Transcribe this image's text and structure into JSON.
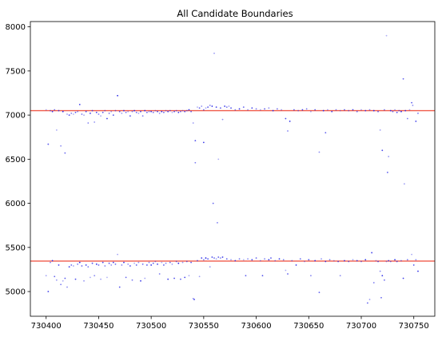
{
  "chart_data": {
    "type": "scatter",
    "title": "All Candidate Boundaries",
    "xlabel": "",
    "ylabel": "",
    "xlim": [
      730385,
      770
    ],
    "ylim": [
      4720,
      8060
    ],
    "x_ticks": [
      "730400",
      "730450",
      "730500",
      "730550",
      "730600",
      "730650",
      "730700",
      "730750"
    ],
    "y_ticks": [
      "5000",
      "5500",
      "6000",
      "6500",
      "7000",
      "7500",
      "8000"
    ],
    "grid": false,
    "legend": "none",
    "hlines": [
      {
        "y": 7050,
        "color": "#f05a4a"
      },
      {
        "y": 5345,
        "color": "#f05a4a"
      }
    ],
    "point_color": "#1f1fe6",
    "series": [
      {
        "points": [
          [
            730400,
            7060
          ],
          [
            730402,
            6670
          ],
          [
            730404,
            7050
          ],
          [
            730406,
            7040
          ],
          [
            730408,
            7060
          ],
          [
            730410,
            6830
          ],
          [
            730412,
            7050
          ],
          [
            730414,
            6650
          ],
          [
            730416,
            7040
          ],
          [
            730418,
            6570
          ],
          [
            730420,
            7010
          ],
          [
            730422,
            7000
          ],
          [
            730424,
            7020
          ],
          [
            730426,
            7010
          ],
          [
            730428,
            7030
          ],
          [
            730430,
            7040
          ],
          [
            730432,
            7120
          ],
          [
            730434,
            7010
          ],
          [
            730436,
            7000
          ],
          [
            730438,
            7040
          ],
          [
            730440,
            6910
          ],
          [
            730442,
            7020
          ],
          [
            730444,
            7050
          ],
          [
            730446,
            6920
          ],
          [
            730448,
            7030
          ],
          [
            730450,
            7010
          ],
          [
            730452,
            6990
          ],
          [
            730454,
            7030
          ],
          [
            730456,
            7050
          ],
          [
            730458,
            6960
          ],
          [
            730460,
            7020
          ],
          [
            730462,
            7040
          ],
          [
            730464,
            7000
          ],
          [
            730466,
            7050
          ],
          [
            730468,
            7220
          ],
          [
            730470,
            7040
          ],
          [
            730472,
            7020
          ],
          [
            730474,
            7050
          ],
          [
            730476,
            7030
          ],
          [
            730478,
            7040
          ],
          [
            730480,
            6990
          ],
          [
            730482,
            7040
          ],
          [
            730484,
            7050
          ],
          [
            730486,
            7030
          ],
          [
            730488,
            7020
          ],
          [
            730490,
            7040
          ],
          [
            730492,
            6990
          ],
          [
            730494,
            7050
          ],
          [
            730496,
            7030
          ],
          [
            730498,
            7040
          ],
          [
            730500,
            7040
          ],
          [
            730502,
            7030
          ],
          [
            730504,
            7050
          ],
          [
            730506,
            7040
          ],
          [
            730508,
            7020
          ],
          [
            730510,
            7040
          ],
          [
            730512,
            7030
          ],
          [
            730514,
            7050
          ],
          [
            730516,
            7040
          ],
          [
            730518,
            7050
          ],
          [
            730520,
            7030
          ],
          [
            730522,
            7040
          ],
          [
            730524,
            7050
          ],
          [
            730526,
            7030
          ],
          [
            730528,
            7040
          ],
          [
            730530,
            7050
          ],
          [
            730532,
            7040
          ],
          [
            730534,
            7050
          ],
          [
            730536,
            7060
          ],
          [
            730538,
            7040
          ],
          [
            730540,
            6910
          ],
          [
            730542,
            6710
          ],
          [
            730542,
            6460
          ],
          [
            730544,
            7090
          ],
          [
            730546,
            7080
          ],
          [
            730548,
            7100
          ],
          [
            730550,
            6690
          ],
          [
            730550,
            7060
          ],
          [
            730552,
            7080
          ],
          [
            730554,
            7090
          ],
          [
            730556,
            7110
          ],
          [
            730558,
            7100
          ],
          [
            730559,
            6000
          ],
          [
            730560,
            7700
          ],
          [
            730562,
            7090
          ],
          [
            730563,
            5780
          ],
          [
            730564,
            6500
          ],
          [
            730566,
            7080
          ],
          [
            730568,
            6950
          ],
          [
            730570,
            7100
          ],
          [
            730572,
            7090
          ],
          [
            730574,
            7100
          ],
          [
            730576,
            7080
          ],
          [
            730580,
            7060
          ],
          [
            730584,
            7070
          ],
          [
            730588,
            7090
          ],
          [
            730592,
            7060
          ],
          [
            730596,
            7080
          ],
          [
            730600,
            7070
          ],
          [
            730604,
            7060
          ],
          [
            730608,
            7070
          ],
          [
            730612,
            7080
          ],
          [
            730616,
            7050
          ],
          [
            730620,
            7070
          ],
          [
            730624,
            7060
          ],
          [
            730628,
            6960
          ],
          [
            730630,
            6820
          ],
          [
            730632,
            6930
          ],
          [
            730636,
            7060
          ],
          [
            730640,
            7050
          ],
          [
            730644,
            7060
          ],
          [
            730648,
            7070
          ],
          [
            730652,
            7040
          ],
          [
            730656,
            7060
          ],
          [
            730660,
            6580
          ],
          [
            730664,
            7050
          ],
          [
            730666,
            6800
          ],
          [
            730668,
            7060
          ],
          [
            730672,
            7040
          ],
          [
            730676,
            7060
          ],
          [
            730680,
            7050
          ],
          [
            730684,
            7060
          ],
          [
            730688,
            7050
          ],
          [
            730692,
            7060
          ],
          [
            730696,
            7040
          ],
          [
            730700,
            7060
          ],
          [
            730704,
            7050
          ],
          [
            730708,
            7060
          ],
          [
            730712,
            7050
          ],
          [
            730716,
            7040
          ],
          [
            730718,
            6830
          ],
          [
            730720,
            6600
          ],
          [
            730722,
            7060
          ],
          [
            730724,
            7900
          ],
          [
            730725,
            6350
          ],
          [
            730726,
            6530
          ],
          [
            730728,
            7050
          ],
          [
            730730,
            7040
          ],
          [
            730732,
            7060
          ],
          [
            730734,
            7030
          ],
          [
            730736,
            7050
          ],
          [
            730738,
            7040
          ],
          [
            730740,
            7410
          ],
          [
            730741,
            6220
          ],
          [
            730742,
            7050
          ],
          [
            730744,
            6960
          ],
          [
            730746,
            7060
          ],
          [
            730748,
            7140
          ],
          [
            730749,
            7110
          ],
          [
            730752,
            6930
          ],
          [
            730754,
            7020
          ],
          [
            730400,
            5180
          ],
          [
            730402,
            5000
          ],
          [
            730404,
            5330
          ],
          [
            730406,
            5350
          ],
          [
            730408,
            5170
          ],
          [
            730410,
            5130
          ],
          [
            730412,
            5300
          ],
          [
            730414,
            5080
          ],
          [
            730416,
            5120
          ],
          [
            730418,
            5150
          ],
          [
            730420,
            5050
          ],
          [
            730422,
            5280
          ],
          [
            730424,
            5300
          ],
          [
            730426,
            5290
          ],
          [
            730428,
            5140
          ],
          [
            730430,
            5310
          ],
          [
            730432,
            5330
          ],
          [
            730434,
            5290
          ],
          [
            730436,
            5120
          ],
          [
            730438,
            5300
          ],
          [
            730440,
            5280
          ],
          [
            730442,
            5160
          ],
          [
            730444,
            5320
          ],
          [
            730446,
            5180
          ],
          [
            730448,
            5310
          ],
          [
            730450,
            5300
          ],
          [
            730452,
            5140
          ],
          [
            730454,
            5330
          ],
          [
            730456,
            5290
          ],
          [
            730458,
            5160
          ],
          [
            730460,
            5320
          ],
          [
            730462,
            5300
          ],
          [
            730464,
            5330
          ],
          [
            730466,
            5310
          ],
          [
            730468,
            5420
          ],
          [
            730470,
            5050
          ],
          [
            730472,
            5300
          ],
          [
            730474,
            5330
          ],
          [
            730476,
            5160
          ],
          [
            730478,
            5310
          ],
          [
            730480,
            5290
          ],
          [
            730482,
            5130
          ],
          [
            730484,
            5320
          ],
          [
            730486,
            5300
          ],
          [
            730488,
            5330
          ],
          [
            730490,
            5120
          ],
          [
            730492,
            5310
          ],
          [
            730494,
            5150
          ],
          [
            730496,
            5300
          ],
          [
            730498,
            5330
          ],
          [
            730500,
            5300
          ],
          [
            730502,
            5320
          ],
          [
            730504,
            5340
          ],
          [
            730506,
            5310
          ],
          [
            730508,
            5200
          ],
          [
            730510,
            5330
          ],
          [
            730512,
            5300
          ],
          [
            730514,
            5320
          ],
          [
            730516,
            5140
          ],
          [
            730518,
            5330
          ],
          [
            730520,
            5310
          ],
          [
            730522,
            5150
          ],
          [
            730524,
            5340
          ],
          [
            730526,
            5320
          ],
          [
            730528,
            5140
          ],
          [
            730530,
            5330
          ],
          [
            730532,
            5160
          ],
          [
            730534,
            5340
          ],
          [
            730536,
            5180
          ],
          [
            730538,
            5330
          ],
          [
            730540,
            4920
          ],
          [
            730541,
            4910
          ],
          [
            730544,
            5350
          ],
          [
            730546,
            5170
          ],
          [
            730548,
            5380
          ],
          [
            730550,
            5360
          ],
          [
            730552,
            5380
          ],
          [
            730554,
            5370
          ],
          [
            730556,
            5280
          ],
          [
            730558,
            5390
          ],
          [
            730560,
            5380
          ],
          [
            730562,
            5370
          ],
          [
            730564,
            5390
          ],
          [
            730566,
            5380
          ],
          [
            730568,
            5390
          ],
          [
            730572,
            5370
          ],
          [
            730576,
            5360
          ],
          [
            730580,
            5350
          ],
          [
            730584,
            5370
          ],
          [
            730588,
            5360
          ],
          [
            730590,
            5180
          ],
          [
            730592,
            5370
          ],
          [
            730596,
            5360
          ],
          [
            730600,
            5380
          ],
          [
            730604,
            5350
          ],
          [
            730606,
            5180
          ],
          [
            730608,
            5370
          ],
          [
            730612,
            5360
          ],
          [
            730614,
            5380
          ],
          [
            730618,
            5350
          ],
          [
            730622,
            5370
          ],
          [
            730626,
            5360
          ],
          [
            730628,
            5240
          ],
          [
            730630,
            5200
          ],
          [
            730634,
            5350
          ],
          [
            730638,
            5300
          ],
          [
            730642,
            5370
          ],
          [
            730646,
            5340
          ],
          [
            730650,
            5360
          ],
          [
            730652,
            5180
          ],
          [
            730656,
            5350
          ],
          [
            730660,
            4990
          ],
          [
            730662,
            5370
          ],
          [
            730666,
            5340
          ],
          [
            730670,
            5360
          ],
          [
            730674,
            5350
          ],
          [
            730678,
            5340
          ],
          [
            730680,
            5180
          ],
          [
            730684,
            5350
          ],
          [
            730688,
            5340
          ],
          [
            730692,
            5360
          ],
          [
            730696,
            5350
          ],
          [
            730700,
            5340
          ],
          [
            730704,
            5360
          ],
          [
            730706,
            4870
          ],
          [
            730708,
            4910
          ],
          [
            730710,
            5440
          ],
          [
            730712,
            5100
          ],
          [
            730714,
            5350
          ],
          [
            730716,
            5340
          ],
          [
            730718,
            5230
          ],
          [
            730720,
            5180
          ],
          [
            730722,
            5130
          ],
          [
            730724,
            5340
          ],
          [
            730726,
            5350
          ],
          [
            730728,
            5340
          ],
          [
            730732,
            5360
          ],
          [
            730734,
            5340
          ],
          [
            730738,
            5350
          ],
          [
            730740,
            5150
          ],
          [
            730744,
            5360
          ],
          [
            730748,
            5420
          ],
          [
            730750,
            5300
          ],
          [
            730752,
            5360
          ],
          [
            730754,
            5230
          ],
          [
            730719,
            4930
          ]
        ]
      }
    ]
  }
}
